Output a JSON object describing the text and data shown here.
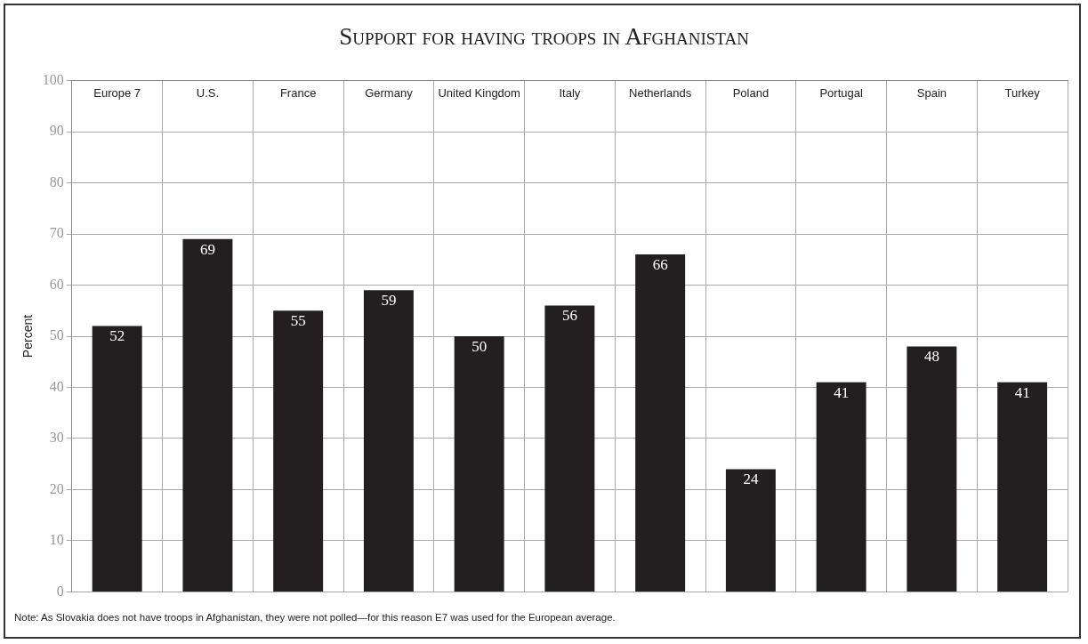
{
  "chart_data": {
    "type": "bar",
    "title": "Support for having troops in Afghanistan",
    "categories": [
      "Europe 7",
      "U.S.",
      "France",
      "Germany",
      "United Kingdom",
      "Italy",
      "Netherlands",
      "Poland",
      "Portugal",
      "Spain",
      "Turkey"
    ],
    "values": [
      52,
      69,
      55,
      59,
      50,
      56,
      66,
      24,
      41,
      48,
      41
    ],
    "color": "#231f20",
    "ylabel": "Percent",
    "ylim": [
      0,
      100
    ],
    "yticks": [
      0,
      10,
      20,
      30,
      40,
      50,
      60,
      70,
      80,
      90,
      100
    ],
    "grid": true,
    "data_labels": true,
    "annotations": [
      "Note: As Slovakia does not have troops in Afghanistan, they were not polled—for this reason E7 was used for the European average."
    ]
  }
}
